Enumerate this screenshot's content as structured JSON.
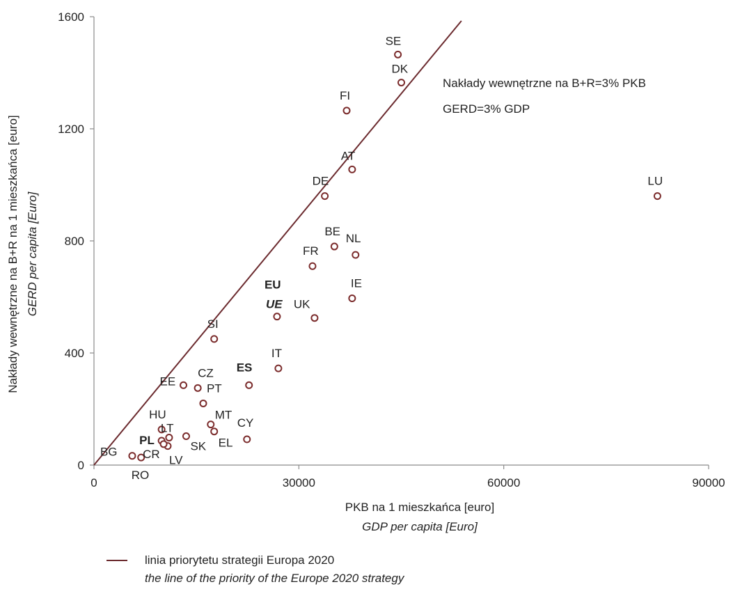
{
  "chart_data": {
    "type": "scatter",
    "xlabel": "PKB na 1 mieszkańca [euro]",
    "xlabel_en": "GDP per capita [Euro]",
    "ylabel": "Nakłady wewnętrzne na B+R na 1 mieszkańca [euro]",
    "ylabel_en": "GERD per capita [Euro]",
    "xlim": [
      0,
      90000
    ],
    "ylim": [
      0,
      1600
    ],
    "x_ticks": [
      "0",
      "30000",
      "60000",
      "90000"
    ],
    "y_ticks": [
      "0",
      "400",
      "800",
      "1200",
      "1600"
    ],
    "grid": false,
    "marker_color": "#7b2c2c",
    "line_color": "#6b2a2e",
    "points": [
      {
        "label": "SE",
        "x": 44500,
        "y": 1465,
        "style": "normal"
      },
      {
        "label": "DK",
        "x": 45000,
        "y": 1365,
        "style": "normal"
      },
      {
        "label": "FI",
        "x": 37000,
        "y": 1265,
        "style": "normal"
      },
      {
        "label": "AT",
        "x": 37800,
        "y": 1055,
        "style": "normal"
      },
      {
        "label": "DE",
        "x": 33800,
        "y": 960,
        "style": "normal"
      },
      {
        "label": "LU",
        "x": 82500,
        "y": 960,
        "style": "normal"
      },
      {
        "label": "BE",
        "x": 35200,
        "y": 780,
        "style": "normal"
      },
      {
        "label": "NL",
        "x": 38300,
        "y": 750,
        "style": "normal"
      },
      {
        "label": "FR",
        "x": 32000,
        "y": 710,
        "style": "normal"
      },
      {
        "label": "IE",
        "x": 37800,
        "y": 595,
        "style": "normal"
      },
      {
        "label": "UK",
        "x": 32300,
        "y": 525,
        "style": "normal"
      },
      {
        "label": "EU",
        "label2": "UE",
        "x": 26800,
        "y": 530,
        "style": "eu"
      },
      {
        "label": "SI",
        "x": 17600,
        "y": 450,
        "style": "normal"
      },
      {
        "label": "IT",
        "x": 27000,
        "y": 345,
        "style": "normal"
      },
      {
        "label": "ES",
        "x": 22700,
        "y": 285,
        "style": "bold"
      },
      {
        "label": "EE",
        "x": 13100,
        "y": 285,
        "style": "normal"
      },
      {
        "label": "CZ",
        "x": 15200,
        "y": 275,
        "style": "normal"
      },
      {
        "label": "PT",
        "x": 16000,
        "y": 220,
        "style": "normal"
      },
      {
        "label": "MT",
        "x": 17100,
        "y": 145,
        "style": "normal"
      },
      {
        "label": "CY",
        "x": 22400,
        "y": 92,
        "style": "normal"
      },
      {
        "label": "EL",
        "x": 17600,
        "y": 120,
        "style": "normal"
      },
      {
        "label": "HU",
        "x": 9900,
        "y": 127,
        "style": "normal"
      },
      {
        "label": "LT",
        "x": 11000,
        "y": 98,
        "style": "normal"
      },
      {
        "label": "PL",
        "x": 9900,
        "y": 87,
        "style": "bold"
      },
      {
        "label": "SK",
        "x": 13500,
        "y": 103,
        "style": "normal"
      },
      {
        "label": "LV",
        "x": 10800,
        "y": 68,
        "style": "normal"
      },
      {
        "label": "CR",
        "x": 10200,
        "y": 75,
        "style": "normal"
      },
      {
        "label": "BG",
        "x": 5600,
        "y": 33,
        "style": "normal"
      },
      {
        "label": "RO",
        "x": 6900,
        "y": 27,
        "style": "normal"
      }
    ],
    "priority_line": {
      "x": [
        0,
        53800
      ],
      "y": [
        0,
        1585
      ]
    },
    "annotations": [
      "Nakłady wewnętrzne na B+R=3% PKB",
      "GERD=3% GDP"
    ],
    "legend": {
      "text": "linia priorytetu strategii Europa 2020",
      "text_en": "the line of the priority of the Europe 2020 strategy"
    }
  }
}
